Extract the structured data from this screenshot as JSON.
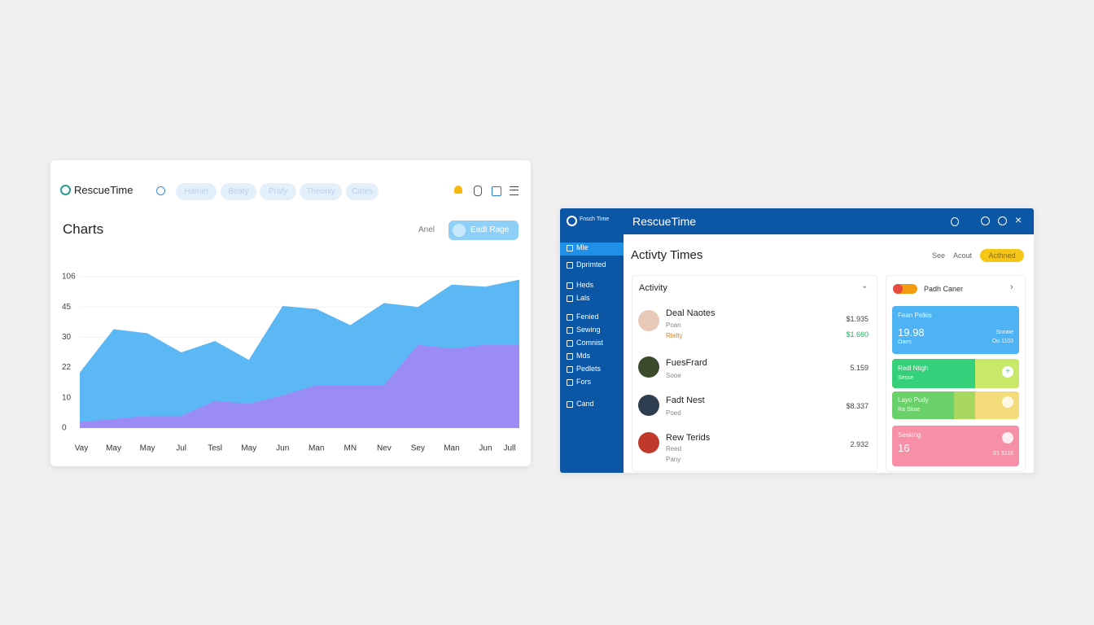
{
  "left_panel": {
    "brand": "RescueTime",
    "nav": [
      "Hamet",
      "Beaty",
      "Prafy",
      "Theonly",
      "Cates"
    ],
    "title": "Charts",
    "filter": "Anel",
    "button": "Eadt Rage"
  },
  "chart_data": {
    "type": "area",
    "categories": [
      "Vay",
      "May",
      "May",
      "Jul",
      "Tesl",
      "May",
      "Jun",
      "Man",
      "MN",
      "Nev",
      "Sey",
      "Man",
      "Jun",
      "Jull"
    ],
    "series": [
      {
        "color": "#5bb8f5",
        "values": [
          20,
          34,
          32,
          26,
          29,
          24,
          47,
          44,
          36,
          53,
          45,
          90,
          86,
          100
        ]
      },
      {
        "color": "#9b8cf5",
        "values": [
          2,
          3,
          4,
          4,
          9,
          8,
          11,
          15,
          15,
          15,
          28,
          27,
          28,
          28
        ]
      }
    ],
    "ylim": [
      0,
      106
    ],
    "yticks": [
      0,
      10,
      22,
      30,
      45,
      106
    ],
    "grid": true
  },
  "right_panel": {
    "logo_text": "Fnsch Time",
    "brand": "RescueTime",
    "sidebar": [
      "Mle",
      "Dprimted",
      "Heds",
      "Lals",
      "Fenied",
      "Sewing",
      "Comnist",
      "Mds",
      "Pedlets",
      "Fors",
      "Cand"
    ],
    "title": "Activty Times",
    "links": [
      "See",
      "Acout"
    ],
    "badge": "Acthned",
    "list_title": "Activity",
    "rows": [
      {
        "name": "Deal Naotes",
        "sub": "Poan",
        "tag": "Rtelty",
        "value": "$1.935",
        "value2": "$1.660"
      },
      {
        "name": "FuesFrard",
        "sub": "Sooe",
        "value": "5.159"
      },
      {
        "name": "Fadt Nest",
        "sub": "Poed",
        "value": "$8.337"
      },
      {
        "name": "Rew Terids",
        "sub": "Reed",
        "sub2": "Pany",
        "value": "2.932"
      }
    ],
    "cards_title": "Padh Caner",
    "cards": [
      {
        "title": "Fean Pelkis",
        "value": "19.98",
        "sub": "Oaes",
        "side": "Snnaie",
        "side2": "Oo 1103"
      },
      {
        "title": "Redl Ntigh",
        "sub": "Sesse"
      },
      {
        "title": "Layo Pudy",
        "sub": "Ra Sbae"
      },
      {
        "title": "Sesking",
        "value": "16",
        "side": "S1 5116"
      }
    ]
  }
}
